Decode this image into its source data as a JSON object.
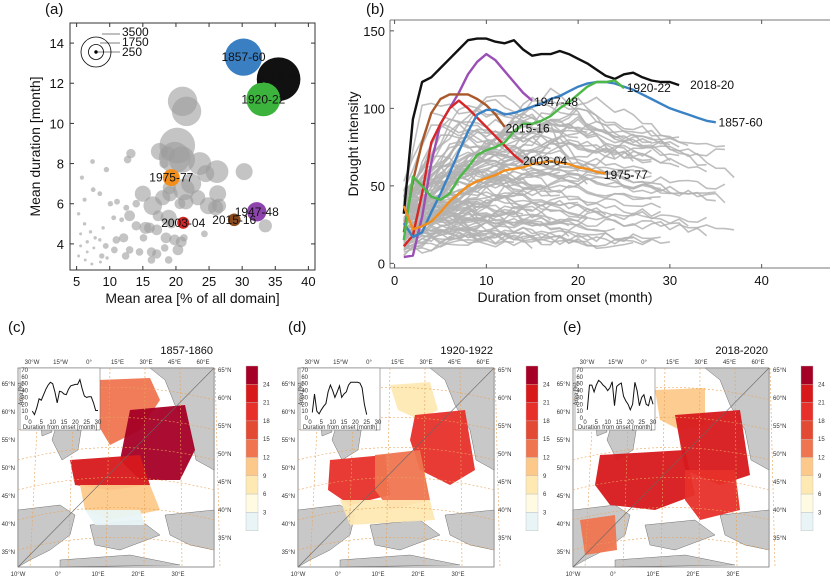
{
  "chart_data": [
    {
      "id": "a",
      "type": "scatter",
      "panel_label": "(a)",
      "title": "",
      "xlabel": "Mean area [% of all domain]",
      "ylabel": "Mean duration [month]",
      "xlim": [
        4,
        41
      ],
      "ylim": [
        2.7,
        15
      ],
      "xticks": [
        5,
        10,
        15,
        20,
        25,
        30,
        35,
        40
      ],
      "yticks": [
        4,
        6,
        8,
        10,
        12,
        14
      ],
      "size_legend": {
        "values": [
          3500,
          1750,
          250
        ],
        "labels": [
          "3500",
          "1750",
          "250"
        ]
      },
      "highlighted": [
        {
          "label": "1857-60",
          "x": 30.2,
          "y": 13.3,
          "size": 2400,
          "color": "#3a7fc1"
        },
        {
          "label": "2018-20",
          "x": 35.5,
          "y": 12.2,
          "size": 3300,
          "color": "#111111",
          "label_color": "#9a9a9a"
        },
        {
          "label": "1920-22",
          "x": 33.2,
          "y": 11.2,
          "size": 2000,
          "color": "#3cb33c"
        },
        {
          "label": "1975-77",
          "x": 19.3,
          "y": 7.3,
          "size": 500,
          "color": "#f28e1c"
        },
        {
          "label": "1947-48",
          "x": 32.2,
          "y": 5.6,
          "size": 650,
          "color": "#8e44ad"
        },
        {
          "label": "2003-04",
          "x": 21.1,
          "y": 5.05,
          "size": 250,
          "color": "#d62728"
        },
        {
          "label": "2015-16",
          "x": 28.8,
          "y": 5.2,
          "size": 280,
          "color": "#8c4a1c"
        }
      ],
      "background_points": [
        [
          21.0,
          11.1,
          1500
        ],
        [
          21.6,
          10.6,
          1500
        ],
        [
          20.2,
          8.9,
          2200
        ],
        [
          19.8,
          8.3,
          1700
        ],
        [
          20.9,
          8.2,
          1200
        ],
        [
          17.5,
          8.6,
          500
        ],
        [
          18.8,
          8.5,
          350
        ],
        [
          13.2,
          8.5,
          150
        ],
        [
          12.7,
          8.2,
          100
        ],
        [
          18.2,
          8.0,
          150
        ],
        [
          23.6,
          8.0,
          900
        ],
        [
          24.5,
          7.5,
          500
        ],
        [
          26.2,
          7.6,
          900
        ],
        [
          30.3,
          7.6,
          500
        ],
        [
          19.0,
          6.8,
          300
        ],
        [
          21.2,
          6.7,
          800
        ],
        [
          22.3,
          7.0,
          700
        ],
        [
          21.5,
          6.1,
          400
        ],
        [
          23.3,
          6.3,
          400
        ],
        [
          24.9,
          5.9,
          500
        ],
        [
          26.3,
          6.5,
          500
        ],
        [
          26.5,
          5.9,
          350
        ],
        [
          26.0,
          5.8,
          400
        ],
        [
          16.5,
          5.9,
          600
        ],
        [
          18.0,
          6.3,
          400
        ],
        [
          19.1,
          6.5,
          400
        ],
        [
          20.6,
          6.0,
          200
        ],
        [
          15.0,
          6.5,
          450
        ],
        [
          14.0,
          6.0,
          100
        ],
        [
          13.0,
          5.4,
          200
        ],
        [
          17.3,
          5.4,
          200
        ],
        [
          18.9,
          5.3,
          450
        ],
        [
          19.3,
          5.0,
          150
        ],
        [
          16.0,
          4.8,
          200
        ],
        [
          14.0,
          4.9,
          150
        ],
        [
          15.4,
          4.8,
          250
        ],
        [
          17.1,
          4.7,
          200
        ],
        [
          18.5,
          4.3,
          200
        ],
        [
          19.8,
          4.2,
          200
        ],
        [
          20.8,
          4.1,
          200
        ],
        [
          21.2,
          4.3,
          100
        ],
        [
          20.3,
          3.7,
          200
        ],
        [
          18.3,
          3.8,
          100
        ],
        [
          16.3,
          3.6,
          150
        ],
        [
          16.3,
          3.2,
          100
        ],
        [
          17.1,
          3.5,
          150
        ],
        [
          18.9,
          3.2,
          100
        ],
        [
          14.5,
          3.6,
          100
        ],
        [
          13.0,
          3.7,
          100
        ],
        [
          12.4,
          3.4,
          100
        ],
        [
          11.0,
          4.2,
          100
        ],
        [
          10.7,
          3.7,
          80
        ],
        [
          9.4,
          3.9,
          60
        ],
        [
          8.8,
          3.4,
          50
        ],
        [
          12.1,
          4.3,
          150
        ],
        [
          15.1,
          4.3,
          100
        ],
        [
          24.3,
          4.5,
          80
        ],
        [
          33.5,
          4.9,
          300
        ],
        [
          12.5,
          5.8,
          60
        ],
        [
          11.1,
          6.1,
          60
        ],
        [
          10.1,
          6.0,
          50
        ],
        [
          8.5,
          6.5,
          40
        ],
        [
          7.5,
          6.7,
          40
        ],
        [
          9.5,
          7.7,
          50
        ],
        [
          7.4,
          8.1,
          40
        ],
        [
          6.2,
          6.2,
          30
        ],
        [
          5.8,
          7.3,
          30
        ],
        [
          5.3,
          5.5,
          20
        ],
        [
          6.2,
          5.0,
          20
        ],
        [
          7.1,
          4.6,
          20
        ],
        [
          7.8,
          4.3,
          20
        ],
        [
          6.6,
          4.1,
          20
        ],
        [
          5.6,
          4.5,
          15
        ],
        [
          5.6,
          3.9,
          15
        ],
        [
          6.6,
          3.6,
          15
        ],
        [
          7.6,
          3.8,
          15
        ],
        [
          8.5,
          4.2,
          20
        ],
        [
          9.0,
          4.8,
          20
        ],
        [
          5.3,
          3.4,
          15
        ],
        [
          6.3,
          3.2,
          15
        ],
        [
          7.3,
          3.0,
          15
        ],
        [
          8.6,
          3.1,
          15
        ],
        [
          9.6,
          3.3,
          20
        ],
        [
          10.6,
          5.3,
          40
        ],
        [
          11.8,
          5.2,
          40
        ]
      ]
    },
    {
      "id": "b",
      "type": "line",
      "panel_label": "(b)",
      "title": "",
      "xlabel": "Duration from onset (month)",
      "ylabel": "Drought intensity",
      "xlim": [
        -0.5,
        42
      ],
      "ylim": [
        -3,
        157
      ],
      "xticks": [
        0,
        10,
        20,
        30,
        40
      ],
      "yticks": [
        0,
        50,
        100,
        150
      ],
      "series": [
        {
          "name": "2018-20",
          "color": "#111111",
          "x": [
            1,
            2,
            3,
            4,
            5,
            6,
            7,
            8,
            9,
            10,
            11,
            12,
            13,
            14,
            15,
            16,
            17,
            18,
            19,
            20,
            21,
            22,
            23,
            24,
            25,
            26,
            27,
            28,
            29,
            30,
            31
          ],
          "y": [
            32,
            93,
            117,
            120,
            126,
            132,
            138,
            144,
            145,
            145,
            143,
            142,
            144,
            138,
            134,
            135,
            135,
            137,
            135,
            132,
            129,
            125,
            121,
            119,
            122,
            123,
            120,
            118,
            117,
            117,
            115
          ]
        },
        {
          "name": "1947-48",
          "color": "#9b4fb5",
          "x": [
            1,
            2,
            3,
            4,
            5,
            6,
            7,
            8,
            9,
            10,
            11,
            12,
            13,
            14,
            15
          ],
          "y": [
            4,
            5,
            30,
            65,
            90,
            100,
            110,
            122,
            130,
            135,
            131,
            124,
            117,
            110,
            105
          ]
        },
        {
          "name": "2015-16",
          "color": "#a9582a",
          "x": [
            1,
            2,
            3,
            4,
            5,
            6,
            7,
            8,
            9,
            10,
            11,
            12
          ],
          "y": [
            20,
            53,
            78,
            97,
            106,
            109,
            109,
            109,
            106,
            102,
            96,
            88
          ]
        },
        {
          "name": "2003-04",
          "color": "#d62728",
          "x": [
            1,
            2,
            3,
            4,
            5,
            6,
            7,
            8,
            9,
            10,
            11,
            12,
            13,
            14
          ],
          "y": [
            11,
            18,
            45,
            78,
            90,
            100,
            105,
            100,
            94,
            88,
            82,
            76,
            70,
            65
          ]
        },
        {
          "name": "1857-60",
          "color": "#3a82c4",
          "x": [
            1,
            2,
            3,
            4,
            5,
            6,
            7,
            8,
            9,
            10,
            11,
            12,
            13,
            14,
            15,
            16,
            17,
            18,
            19,
            20,
            21,
            22,
            23,
            24,
            25,
            26,
            27,
            28,
            29,
            30,
            31,
            32,
            33,
            34,
            35
          ],
          "y": [
            26,
            17,
            20,
            33,
            45,
            58,
            72,
            85,
            96,
            99,
            99,
            96,
            97,
            99,
            101,
            103,
            106,
            108,
            111,
            114,
            116,
            117,
            117,
            116,
            114,
            112,
            109,
            106,
            103,
            100,
            98,
            96,
            94,
            92,
            91
          ]
        },
        {
          "name": "1920-22",
          "color": "#4cb847",
          "x": [
            1,
            2,
            3,
            4,
            5,
            6,
            7,
            8,
            9,
            10,
            11,
            12,
            13,
            14,
            15,
            16,
            17,
            18,
            19,
            20,
            21,
            22,
            23,
            24,
            25
          ],
          "y": [
            15,
            56,
            50,
            43,
            41,
            45,
            55,
            62,
            70,
            73,
            75,
            78,
            85,
            90,
            90,
            92,
            95,
            100,
            104,
            109,
            114,
            117,
            117,
            118,
            113
          ]
        },
        {
          "name": "1975-77",
          "color": "#f28e1c",
          "x": [
            1,
            2,
            3,
            4,
            5,
            6,
            7,
            8,
            9,
            10,
            11,
            12,
            13,
            14,
            15,
            16,
            17,
            18,
            19,
            20,
            21,
            22,
            23
          ],
          "y": [
            37,
            22,
            24,
            27,
            33,
            40,
            45,
            50,
            53,
            55,
            57,
            60,
            61,
            62,
            64,
            65,
            66,
            65,
            64,
            62,
            61,
            59,
            58
          ]
        }
      ],
      "annotations": [
        {
          "text": "2018-20",
          "x": 32.2,
          "y": 115
        },
        {
          "text": "1920-22",
          "x": 25.3,
          "y": 113
        },
        {
          "text": "1947-48",
          "x": 15.2,
          "y": 104
        },
        {
          "text": "1857-60",
          "x": 35.3,
          "y": 91
        },
        {
          "text": "2015-16",
          "x": 12.1,
          "y": 87
        },
        {
          "text": "2003-04",
          "x": 14.0,
          "y": 66
        },
        {
          "text": "1975-77",
          "x": 22.8,
          "y": 57
        }
      ],
      "background_series_count": 110,
      "background_color": "#b3b3b3"
    },
    {
      "id": "c",
      "type": "heatmap",
      "panel_label": "(c)",
      "title": "1857-1860",
      "inset": {
        "ylabel": "Area [%]",
        "xlabel": "Duration from onset [month]",
        "xticks": [
          0,
          5,
          10,
          15,
          20,
          25,
          30
        ],
        "yticks": [
          0,
          10,
          20,
          30,
          40,
          50,
          60,
          70
        ],
        "x": [
          1,
          2,
          3,
          4,
          5,
          6,
          7,
          8,
          9,
          10,
          11,
          12,
          13,
          14,
          15,
          16,
          17,
          18,
          19,
          20,
          21,
          22,
          23,
          24,
          25,
          26,
          27,
          28,
          29,
          30
        ],
        "y": [
          10,
          5,
          15,
          28,
          26,
          34,
          42,
          48,
          52,
          50,
          38,
          22,
          39,
          38,
          35,
          34,
          42,
          47,
          48,
          49,
          49,
          56,
          43,
          32,
          30,
          31,
          31,
          22,
          11,
          11
        ]
      }
    },
    {
      "id": "d",
      "type": "heatmap",
      "panel_label": "(d)",
      "title": "1920-1922",
      "inset": {
        "ylabel": "Area [%]",
        "xlabel": "Duration from onset [month]",
        "xticks": [
          0,
          5,
          10,
          15,
          20,
          25,
          30
        ],
        "yticks": [
          0,
          10,
          20,
          30,
          40,
          50,
          60,
          70
        ],
        "x": [
          1,
          2,
          3,
          4,
          5,
          6,
          7,
          8,
          9,
          10,
          11,
          12,
          13,
          14,
          15,
          16,
          17,
          18,
          19,
          20,
          21,
          22,
          23,
          24,
          25
        ],
        "y": [
          8,
          35,
          10,
          6,
          12,
          17,
          21,
          38,
          48,
          40,
          30,
          38,
          47,
          30,
          35,
          38,
          48,
          52,
          52,
          52,
          52,
          51,
          44,
          20,
          5
        ]
      }
    },
    {
      "id": "e",
      "type": "heatmap",
      "panel_label": "(e)",
      "title": "2018-2020",
      "inset": {
        "ylabel": "Area [%]",
        "xlabel": "Duration from onset [month]",
        "xticks": [
          0,
          5,
          10,
          15,
          20,
          25,
          30
        ],
        "yticks": [
          0,
          10,
          20,
          30,
          40,
          50,
          60,
          70
        ],
        "x": [
          1,
          2,
          3,
          4,
          5,
          6,
          7,
          8,
          9,
          10,
          11,
          12,
          13,
          14,
          15,
          16,
          17,
          18,
          19,
          20,
          21,
          22,
          23,
          24,
          25,
          26,
          27,
          28,
          29,
          30
        ],
        "y": [
          12,
          48,
          48,
          38,
          48,
          55,
          52,
          48,
          45,
          40,
          44,
          53,
          18,
          46,
          49,
          51,
          32,
          25,
          20,
          12,
          20,
          52,
          40,
          18,
          30,
          34,
          20,
          18,
          32,
          20
        ]
      }
    }
  ],
  "maps": {
    "top_lon_labels": [
      "30°W",
      "15°W",
      "0°",
      "15°E",
      "30°E",
      "45°E",
      "60°E"
    ],
    "bottom_lon_labels": [
      "10°W",
      "0°",
      "10°E",
      "20°E",
      "30°E"
    ],
    "left_lat_labels": [
      "65°N",
      "60°N",
      "55°N",
      "50°N",
      "45°N",
      "40°N",
      "35°N"
    ],
    "right_lat_labels": [
      "65°N",
      "60°N",
      "55°N",
      "50°N",
      "45°N",
      "40°N",
      "35°N"
    ],
    "colorbar": {
      "labels": [
        "24",
        "21",
        "18",
        "15",
        "12",
        "9",
        "6",
        "3"
      ],
      "colors": [
        "#a50026",
        "#d7191c",
        "#e8302a",
        "#e34a33",
        "#ef7550",
        "#fdc98a",
        "#fee9b3",
        "#fffbe3",
        "#e8f4f6"
      ]
    },
    "land_color": "#c8c8c8",
    "grid_color": "#e8a35a"
  }
}
